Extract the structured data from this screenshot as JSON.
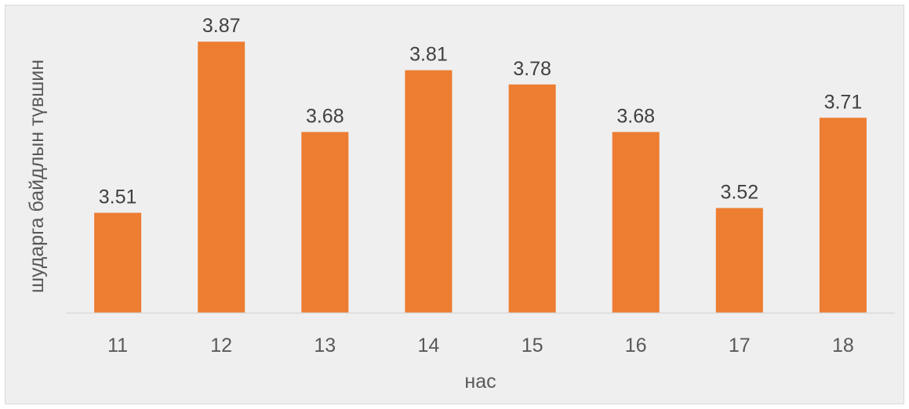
{
  "chart_data": {
    "type": "bar",
    "categories": [
      "11",
      "12",
      "13",
      "14",
      "15",
      "16",
      "17",
      "18"
    ],
    "values": [
      3.51,
      3.87,
      3.68,
      3.81,
      3.78,
      3.68,
      3.52,
      3.71
    ],
    "value_labels": [
      "3.51",
      "3.87",
      "3.68",
      "3.81",
      "3.78",
      "3.68",
      "3.52",
      "3.71"
    ],
    "title": "",
    "xlabel": "нас",
    "ylabel": "шударга байдлын түвшин",
    "ylim": [
      3.3,
      3.9
    ],
    "y_axis_visible": false,
    "grid": false,
    "legend": "none",
    "colors": {
      "bar": "#ed7d31",
      "axis": "#d9d9d9",
      "background": "#efefef"
    }
  }
}
